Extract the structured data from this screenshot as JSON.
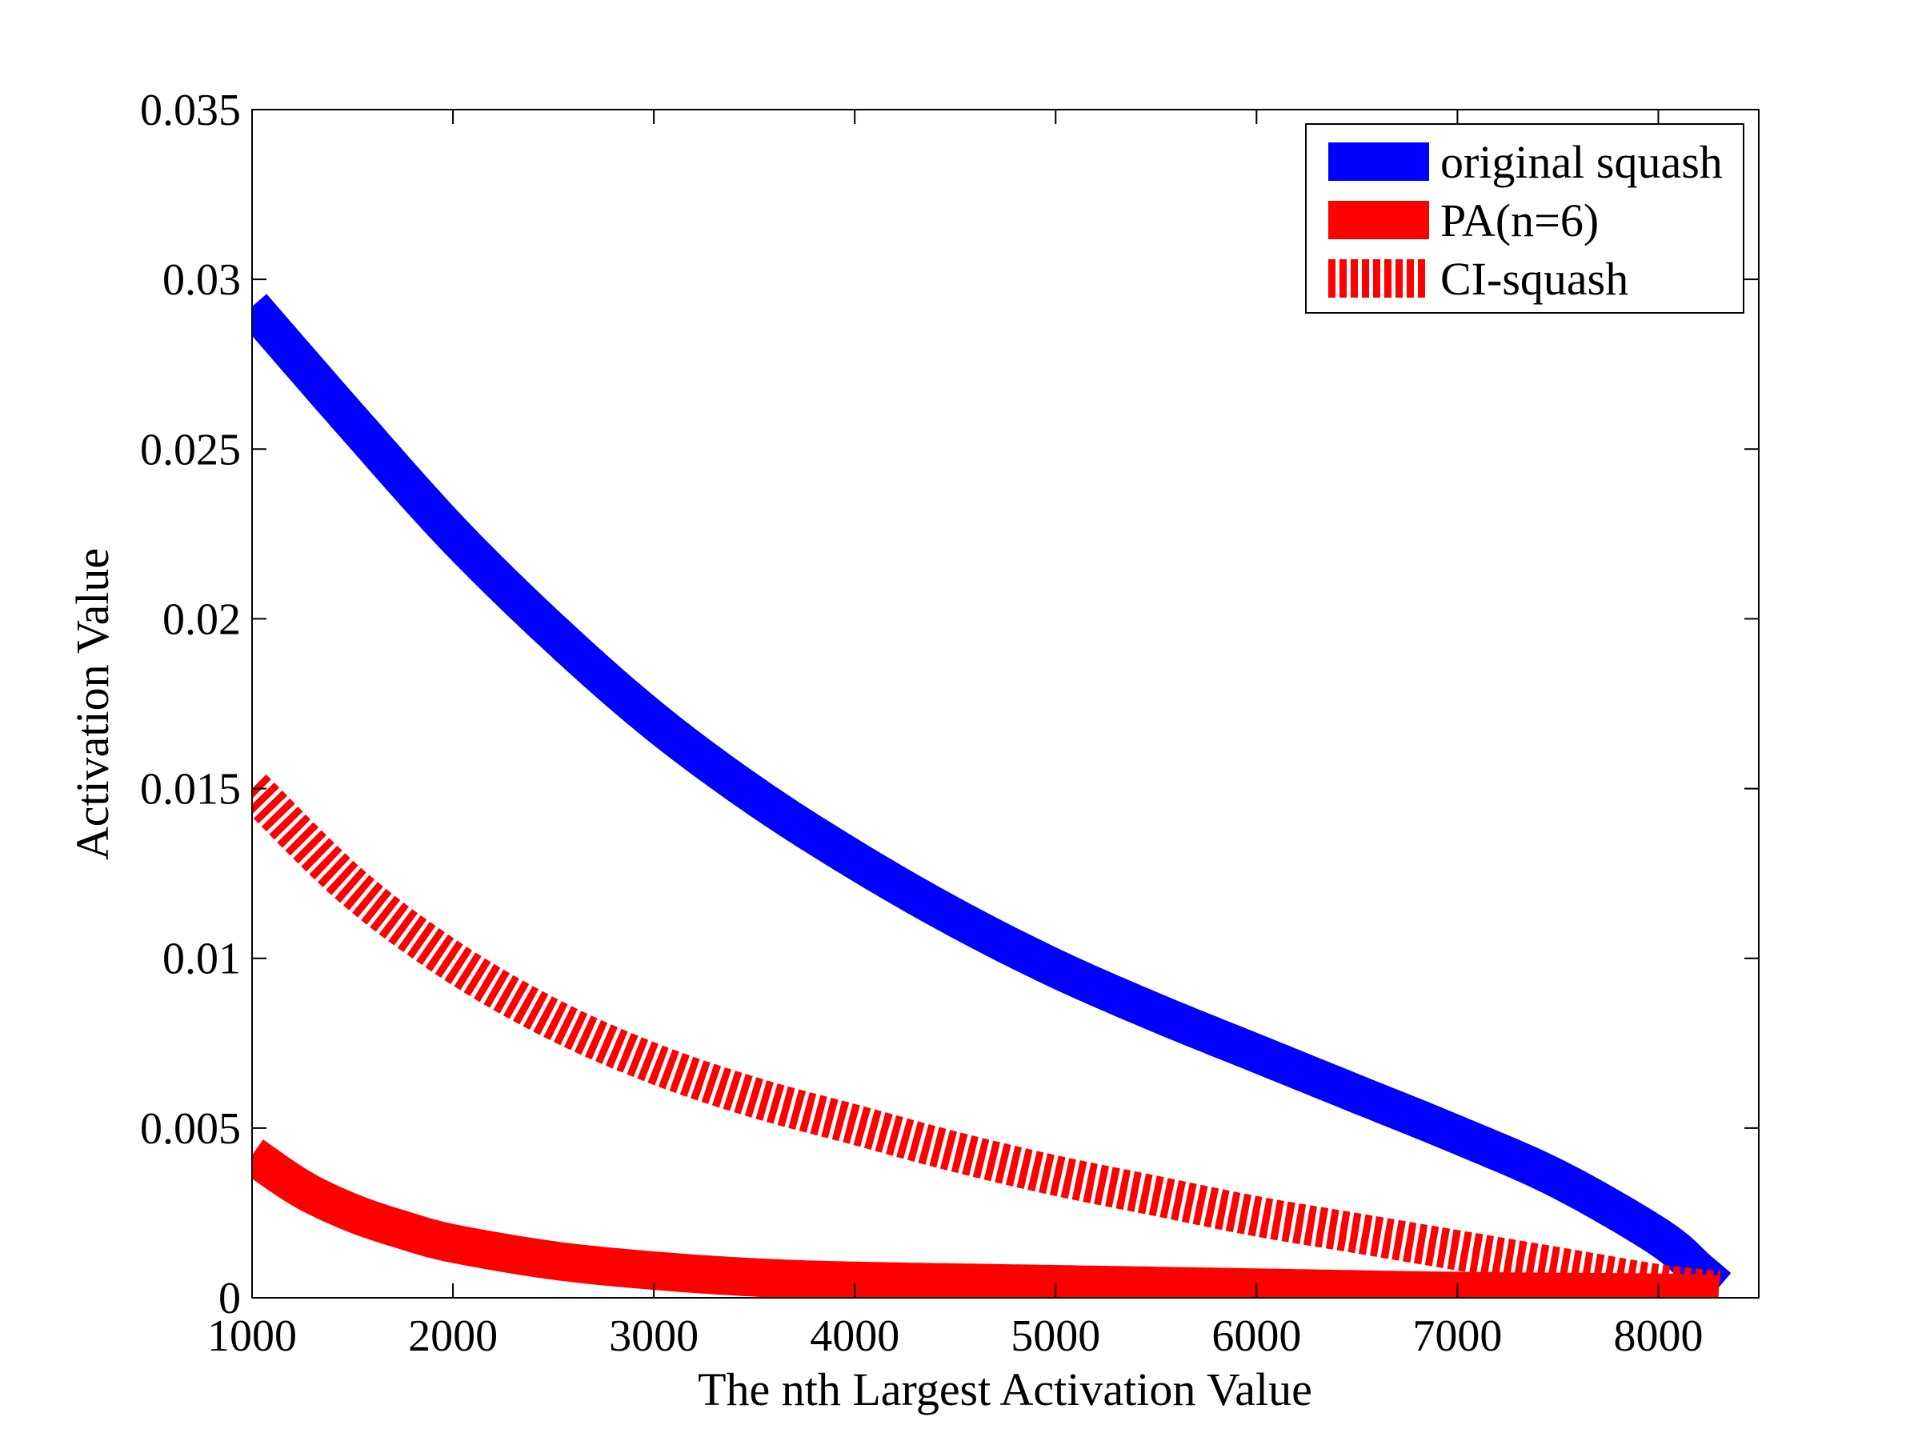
{
  "colors": {
    "original_squash": "#0000ff",
    "pa": "#ff0000",
    "ci_squash": "#ff0000",
    "axes": "#000000",
    "background": "#ffffff"
  },
  "chart_data": {
    "type": "line",
    "title": "",
    "xlabel": "The nth Largest Activation Value",
    "ylabel": "Activation Value",
    "xlim": [
      1000,
      8500
    ],
    "ylim": [
      0,
      0.035
    ],
    "grid": false,
    "legend_position": "top-right",
    "x_ticks": [
      1000,
      2000,
      3000,
      4000,
      5000,
      6000,
      7000,
      8000
    ],
    "x_tick_labels": [
      "1000",
      "2000",
      "3000",
      "4000",
      "5000",
      "6000",
      "7000",
      "8000"
    ],
    "y_ticks": [
      0,
      0.005,
      0.01,
      0.015,
      0.02,
      0.025,
      0.03,
      0.035
    ],
    "y_tick_labels": [
      "0",
      "0.005",
      "0.01",
      "0.015",
      "0.02",
      "0.025",
      "0.03",
      "0.035"
    ],
    "series": [
      {
        "name": "original squash",
        "style": "solid",
        "x": [
          1000,
          1500,
          2000,
          2500,
          3000,
          3500,
          4000,
          4500,
          5000,
          5500,
          6000,
          6500,
          7000,
          7500,
          8000,
          8200,
          8300
        ],
        "y": [
          0.0292,
          0.0258,
          0.0225,
          0.0196,
          0.017,
          0.0148,
          0.0129,
          0.0112,
          0.0097,
          0.0084,
          0.0072,
          0.006,
          0.0048,
          0.0035,
          0.0018,
          0.0008,
          0.0003
        ]
      },
      {
        "name": "PA(n=6)",
        "style": "solid",
        "x": [
          1000,
          1250,
          1500,
          1750,
          2000,
          2500,
          3000,
          3500,
          4000,
          5000,
          6000,
          7000,
          8000,
          8300
        ],
        "y": [
          0.0042,
          0.0032,
          0.0025,
          0.002,
          0.0016,
          0.0011,
          0.0008,
          0.0006,
          0.0005,
          0.0004,
          0.0003,
          0.0002,
          0.00015,
          0.0001
        ]
      },
      {
        "name": "CI-squash",
        "style": "hatched",
        "x": [
          1000,
          1500,
          2000,
          2500,
          3000,
          3500,
          4000,
          4500,
          5000,
          5500,
          6000,
          6500,
          7000,
          7500,
          8000,
          8300
        ],
        "y": [
          0.015,
          0.0121,
          0.0099,
          0.0082,
          0.0069,
          0.0059,
          0.0051,
          0.0043,
          0.0036,
          0.003,
          0.0024,
          0.0019,
          0.0014,
          0.0009,
          0.0004,
          0.0002
        ]
      }
    ]
  }
}
